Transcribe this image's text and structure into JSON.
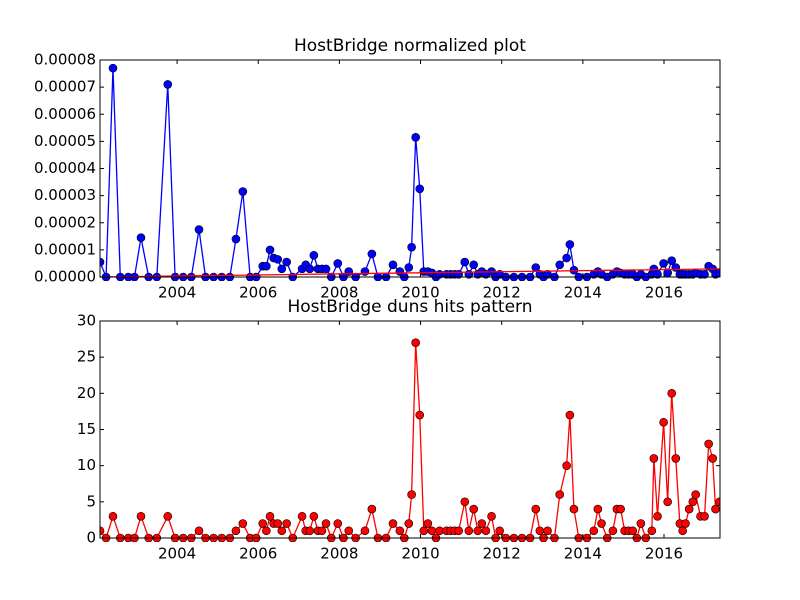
{
  "chart_data": [
    {
      "type": "line",
      "title": "HostBridge normalized plot",
      "x": [
        2002.1,
        2002.25,
        2002.42,
        2002.6,
        2002.8,
        2002.95,
        2003.11,
        2003.3,
        2003.5,
        2003.77,
        2003.95,
        2004.15,
        2004.35,
        2004.54,
        2004.7,
        2004.9,
        2005.1,
        2005.3,
        2005.45,
        2005.62,
        2005.8,
        2005.95,
        2006.11,
        2006.2,
        2006.29,
        2006.38,
        2006.48,
        2006.58,
        2006.7,
        2006.85,
        2007.08,
        2007.17,
        2007.27,
        2007.37,
        2007.47,
        2007.57,
        2007.67,
        2007.8,
        2007.96,
        2008.1,
        2008.23,
        2008.4,
        2008.63,
        2008.8,
        2008.95,
        2009.15,
        2009.32,
        2009.49,
        2009.6,
        2009.71,
        2009.78,
        2009.88,
        2009.98,
        2010.08,
        2010.18,
        2010.28,
        2010.38,
        2010.47,
        2010.64,
        2010.74,
        2010.84,
        2010.94,
        2011.09,
        2011.19,
        2011.31,
        2011.41,
        2011.51,
        2011.61,
        2011.75,
        2011.85,
        2011.95,
        2012.1,
        2012.3,
        2012.5,
        2012.7,
        2012.84,
        2012.94,
        2013.03,
        2013.13,
        2013.3,
        2013.43,
        2013.6,
        2013.68,
        2013.78,
        2013.9,
        2014.1,
        2014.27,
        2014.37,
        2014.46,
        2014.6,
        2014.74,
        2014.84,
        2014.93,
        2015.03,
        2015.13,
        2015.23,
        2015.33,
        2015.43,
        2015.55,
        2015.7,
        2015.75,
        2015.84,
        2015.99,
        2016.09,
        2016.19,
        2016.29,
        2016.39,
        2016.46,
        2016.53,
        2016.62,
        2016.71,
        2016.78,
        2016.9,
        2017.0,
        2017.1,
        2017.2,
        2017.27,
        2017.37
      ],
      "series": [
        {
          "color": "#0000ff",
          "marker": true,
          "values": [
            5.5e-06,
            0,
            7.7e-05,
            0,
            0,
            0,
            1.45e-05,
            0,
            0,
            7.1e-05,
            0,
            0,
            0,
            1.75e-05,
            0,
            0,
            0,
            0,
            1.4e-05,
            3.15e-05,
            0,
            0,
            4e-06,
            4e-06,
            1e-05,
            7e-06,
            6.5e-06,
            3e-06,
            5.5e-06,
            0,
            3e-06,
            4.5e-06,
            3e-06,
            8e-06,
            3e-06,
            3e-06,
            3e-06,
            0,
            5e-06,
            0,
            2e-06,
            0,
            2e-06,
            8.5e-06,
            0,
            0,
            4.5e-06,
            2e-06,
            0,
            3.5e-06,
            1.1e-05,
            5.15e-05,
            3.25e-05,
            2e-06,
            2e-06,
            1.5e-06,
            0,
            1e-06,
            1e-06,
            1e-06,
            1e-06,
            1e-06,
            5.5e-06,
            1e-06,
            4.5e-06,
            1e-06,
            2e-06,
            1e-06,
            2e-06,
            0,
            1e-06,
            0,
            0,
            0,
            0,
            3.5e-06,
            1e-06,
            0,
            1e-06,
            0,
            4.5e-06,
            7e-06,
            1.2e-05,
            2.5e-06,
            0,
            0,
            1e-06,
            2e-06,
            1e-06,
            0,
            1e-06,
            2e-06,
            1.5e-06,
            1e-06,
            1e-06,
            1e-06,
            0,
            1e-06,
            0,
            1e-06,
            3e-06,
            1e-06,
            5e-06,
            1.5e-06,
            6e-06,
            3.5e-06,
            1e-06,
            1e-06,
            1e-06,
            1e-06,
            1e-06,
            1.5e-06,
            1e-06,
            1e-06,
            4e-06,
            3e-06,
            1e-06,
            1.5e-06
          ]
        },
        {
          "color": "#ff0000",
          "marker": false,
          "x": [
            2002.1,
            2017.37
          ],
          "values": [
            0,
            3e-06
          ]
        }
      ],
      "xlim": [
        2002.1,
        2017.38
      ],
      "xticks": [
        2004,
        2006,
        2008,
        2010,
        2012,
        2014,
        2016
      ],
      "ylim": [
        0,
        8e-05
      ],
      "yticks": [
        {
          "value": 0,
          "label": "0.00000"
        },
        {
          "value": 1e-05,
          "label": "0.00001"
        },
        {
          "value": 2e-05,
          "label": "0.00002"
        },
        {
          "value": 3e-05,
          "label": "0.00003"
        },
        {
          "value": 4e-05,
          "label": "0.00004"
        },
        {
          "value": 5e-05,
          "label": "0.00005"
        },
        {
          "value": 6e-05,
          "label": "0.00006"
        },
        {
          "value": 7e-05,
          "label": "0.00007"
        },
        {
          "value": 8e-05,
          "label": "0.00008"
        }
      ]
    },
    {
      "type": "line",
      "title": "HostBridge duns hits pattern",
      "x": [
        2002.1,
        2002.25,
        2002.42,
        2002.6,
        2002.8,
        2002.95,
        2003.11,
        2003.3,
        2003.5,
        2003.77,
        2003.95,
        2004.15,
        2004.35,
        2004.54,
        2004.7,
        2004.9,
        2005.1,
        2005.3,
        2005.45,
        2005.62,
        2005.8,
        2005.95,
        2006.11,
        2006.2,
        2006.29,
        2006.38,
        2006.48,
        2006.58,
        2006.7,
        2006.85,
        2007.08,
        2007.17,
        2007.27,
        2007.37,
        2007.47,
        2007.57,
        2007.67,
        2007.8,
        2007.96,
        2008.1,
        2008.23,
        2008.4,
        2008.63,
        2008.8,
        2008.95,
        2009.15,
        2009.32,
        2009.49,
        2009.6,
        2009.71,
        2009.78,
        2009.88,
        2009.98,
        2010.08,
        2010.18,
        2010.28,
        2010.38,
        2010.47,
        2010.64,
        2010.74,
        2010.84,
        2010.94,
        2011.09,
        2011.19,
        2011.31,
        2011.41,
        2011.51,
        2011.61,
        2011.75,
        2011.85,
        2011.95,
        2012.1,
        2012.3,
        2012.5,
        2012.7,
        2012.84,
        2012.94,
        2013.03,
        2013.13,
        2013.3,
        2013.43,
        2013.6,
        2013.68,
        2013.78,
        2013.9,
        2014.1,
        2014.27,
        2014.37,
        2014.46,
        2014.6,
        2014.74,
        2014.84,
        2014.93,
        2015.03,
        2015.13,
        2015.23,
        2015.33,
        2015.43,
        2015.55,
        2015.7,
        2015.75,
        2015.84,
        2015.99,
        2016.09,
        2016.19,
        2016.29,
        2016.39,
        2016.46,
        2016.53,
        2016.62,
        2016.71,
        2016.78,
        2016.9,
        2017.0,
        2017.1,
        2017.2,
        2017.27,
        2017.37
      ],
      "series": [
        {
          "color": "#ff0000",
          "marker": true,
          "values": [
            1,
            0,
            3,
            0,
            0,
            0,
            3,
            0,
            0,
            3,
            0,
            0,
            0,
            1,
            0,
            0,
            0,
            0,
            1,
            2,
            0,
            0,
            2,
            1,
            3,
            2,
            2,
            1,
            2,
            0,
            3,
            1,
            1,
            3,
            1,
            1,
            2,
            0,
            2,
            0,
            1,
            0,
            1,
            4,
            0,
            0,
            2,
            1,
            0,
            2,
            6,
            27,
            17,
            1,
            2,
            1,
            0,
            1,
            1,
            1,
            1,
            1,
            5,
            1,
            4,
            1,
            2,
            1,
            3,
            0,
            1,
            0,
            0,
            0,
            0,
            4,
            1,
            0,
            1,
            0,
            6,
            10,
            17,
            4,
            0,
            0,
            1,
            4,
            2,
            0,
            1,
            4,
            4,
            1,
            1,
            1,
            0,
            2,
            0,
            1,
            11,
            3,
            16,
            5,
            20,
            11,
            2,
            1,
            2,
            4,
            5,
            6,
            3,
            3,
            13,
            11,
            4,
            5
          ]
        }
      ],
      "xlim": [
        2002.1,
        2017.38
      ],
      "xticks": [
        2004,
        2006,
        2008,
        2010,
        2012,
        2014,
        2016
      ],
      "ylim": [
        0,
        30
      ],
      "yticks": [
        0,
        5,
        10,
        15,
        20,
        25,
        30
      ]
    }
  ]
}
